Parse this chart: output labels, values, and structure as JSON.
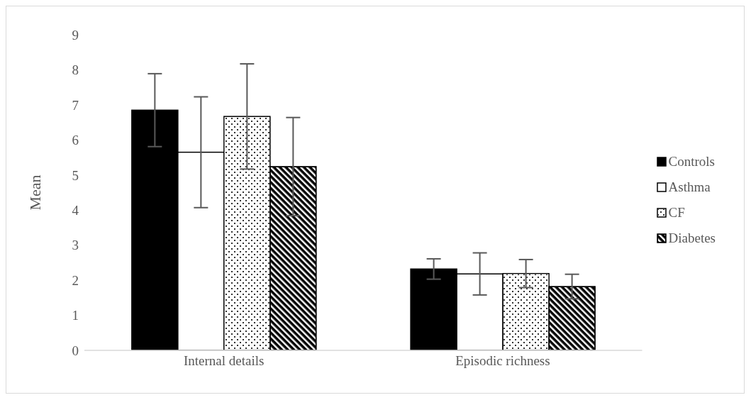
{
  "chart_data": {
    "type": "bar",
    "ylabel": "Mean",
    "categories": [
      "Internal details",
      "Episodic richness"
    ],
    "series": [
      {
        "name": "Controls",
        "color": "#000000",
        "values": [
          6.85,
          2.32
        ],
        "errors": [
          1.04,
          0.29
        ]
      },
      {
        "name": "Asthma",
        "color": "#ffffff",
        "values": [
          5.65,
          2.18
        ],
        "errors": [
          1.58,
          0.6
        ]
      },
      {
        "name": "CF",
        "color": "#ffffff",
        "values": [
          6.67,
          2.19
        ],
        "errors": [
          1.5,
          0.4
        ]
      },
      {
        "name": "Diabetes",
        "color": "#000000",
        "values": [
          5.24,
          1.82
        ],
        "errors": [
          1.4,
          0.35
        ]
      }
    ],
    "ylim": [
      0,
      9
    ],
    "yticks": [
      0,
      1,
      2,
      3,
      4,
      5,
      6,
      7,
      8,
      9
    ],
    "legend": "right",
    "grid": false
  }
}
